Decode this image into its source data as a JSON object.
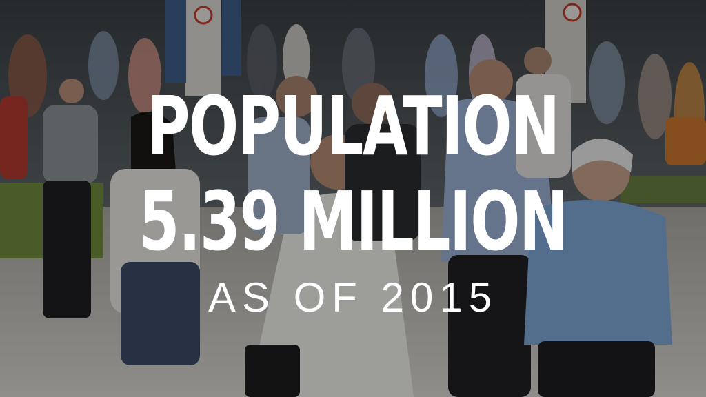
{
  "headline": {
    "line1": "POPULATION",
    "line2": "5.39 MILLION",
    "line3": "AS OF 2015"
  },
  "colors": {
    "text": "#ffffff",
    "overlay": "rgba(0,0,0,0.34)"
  }
}
